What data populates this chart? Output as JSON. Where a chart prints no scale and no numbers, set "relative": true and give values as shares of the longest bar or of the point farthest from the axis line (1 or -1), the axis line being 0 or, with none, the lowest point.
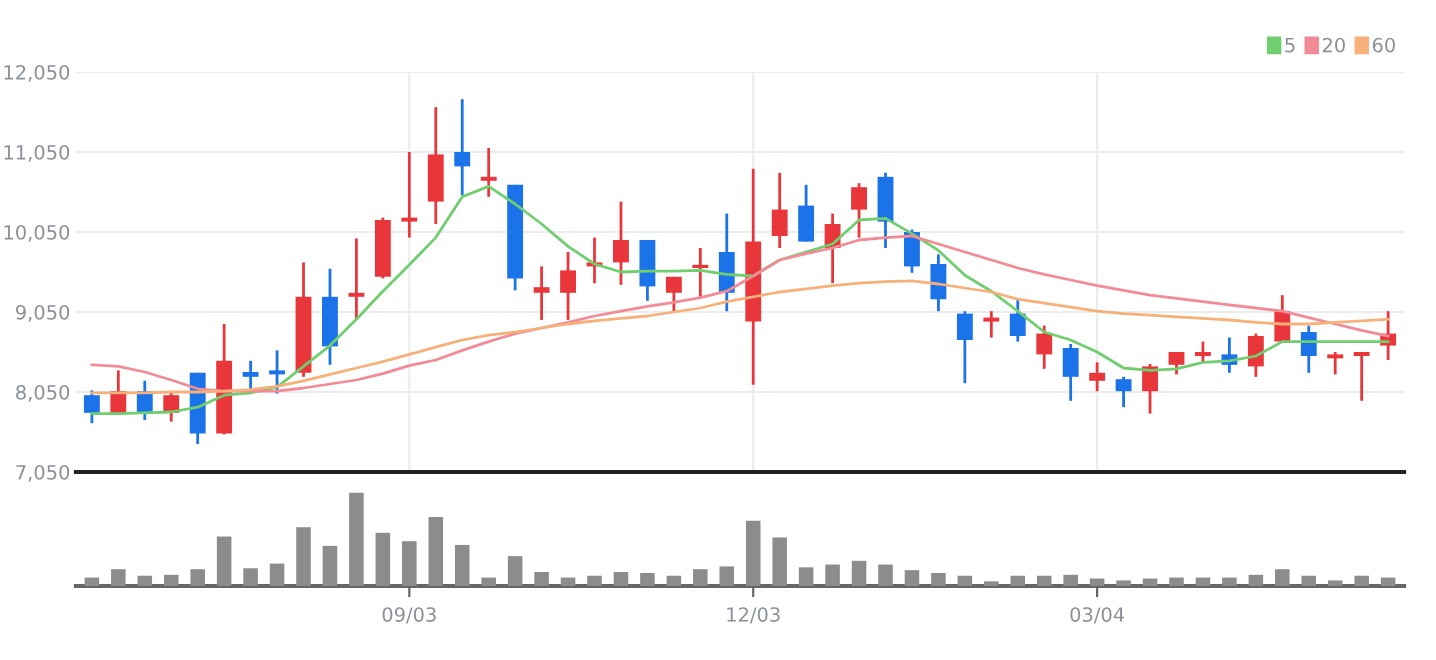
{
  "chart_data": [
    {
      "type": "candlestick",
      "tick_labels": "y",
      "grid": true,
      "legend": "top right",
      "categories": [
        null,
        null,
        null,
        null,
        null,
        null,
        null,
        null,
        null,
        null,
        null,
        null,
        null,
        null,
        null,
        null,
        null,
        null,
        null,
        null,
        null,
        null,
        null,
        null,
        null,
        null,
        null,
        null,
        null,
        null,
        null,
        null,
        null,
        null,
        null,
        null,
        null,
        null,
        null,
        null,
        null,
        null,
        null,
        null,
        null,
        null,
        null,
        null,
        null,
        null
      ],
      "ylim": [
        7050,
        12050
      ],
      "yticks": [
        {
          "value": 7050,
          "label": "7,050"
        },
        {
          "value": 8050,
          "label": "8,050"
        },
        {
          "value": 9050,
          "label": "9,050"
        },
        {
          "value": 10050,
          "label": "10,050"
        },
        {
          "value": 11050,
          "label": "11,050"
        },
        {
          "value": 12050,
          "label": "12,050"
        }
      ],
      "ohlc": [
        [
          8010,
          8070,
          7660,
          7790
        ],
        [
          7790,
          8320,
          7780,
          8060
        ],
        [
          8060,
          8190,
          7700,
          7790
        ],
        [
          7790,
          8040,
          7680,
          8010
        ],
        [
          8290,
          8290,
          7400,
          7530
        ],
        [
          7530,
          8900,
          7520,
          8440
        ],
        [
          8300,
          8440,
          8030,
          8240
        ],
        [
          8320,
          8570,
          8030,
          8270
        ],
        [
          8290,
          9670,
          8240,
          9240
        ],
        [
          9240,
          9590,
          8390,
          8620
        ],
        [
          9240,
          9970,
          8950,
          9290
        ],
        [
          9490,
          10230,
          9470,
          10200
        ],
        [
          10180,
          11050,
          9980,
          10230
        ],
        [
          10430,
          11610,
          10150,
          11020
        ],
        [
          11050,
          11710,
          10510,
          10870
        ],
        [
          10690,
          11100,
          10490,
          10740
        ],
        [
          10640,
          10640,
          9320,
          9470
        ],
        [
          9290,
          9620,
          8950,
          9360
        ],
        [
          9290,
          9800,
          8950,
          9570
        ],
        [
          9620,
          9980,
          9410,
          9670
        ],
        [
          9670,
          10430,
          9390,
          9950
        ],
        [
          9950,
          9950,
          9190,
          9370
        ],
        [
          9290,
          9490,
          9060,
          9490
        ],
        [
          9600,
          9850,
          9240,
          9640
        ],
        [
          9800,
          10280,
          9060,
          9290
        ],
        [
          8930,
          10840,
          8140,
          9930
        ],
        [
          10000,
          10790,
          9850,
          10330
        ],
        [
          10380,
          10640,
          9930,
          9930
        ],
        [
          9850,
          10280,
          9410,
          10150
        ],
        [
          10330,
          10660,
          9980,
          10610
        ],
        [
          10740,
          10790,
          9850,
          10180
        ],
        [
          10050,
          10080,
          9540,
          9620
        ],
        [
          9650,
          9770,
          9060,
          9210
        ],
        [
          9030,
          9060,
          8160,
          8700
        ],
        [
          8930,
          9060,
          8730,
          8980
        ],
        [
          9030,
          9210,
          8680,
          8750
        ],
        [
          8520,
          8880,
          8340,
          8780
        ],
        [
          8600,
          8650,
          7940,
          8240
        ],
        [
          8190,
          8420,
          8060,
          8290
        ],
        [
          8210,
          8240,
          7860,
          8060
        ],
        [
          8060,
          8400,
          7780,
          8370
        ],
        [
          8390,
          8550,
          8270,
          8550
        ],
        [
          8500,
          8680,
          8420,
          8550
        ],
        [
          8520,
          8730,
          8290,
          8390
        ],
        [
          8370,
          8780,
          8240,
          8750
        ],
        [
          8680,
          9260,
          8680,
          9060
        ],
        [
          8800,
          8880,
          8290,
          8500
        ],
        [
          8470,
          8550,
          8270,
          8520
        ],
        [
          8500,
          8550,
          7940,
          8550
        ],
        [
          8630,
          9060,
          8450,
          8780
        ]
      ],
      "colors": [
        "#1a73e8",
        "#e8363b",
        "#1a73e8",
        "#e8363b",
        "#1a73e8",
        "#e8363b",
        "#1a73e8",
        "#1a73e8",
        "#e8363b",
        "#1a73e8",
        "#e8363b",
        "#e8363b",
        "#e8363b",
        "#e8363b",
        "#1a73e8",
        "#e8363b",
        "#1a73e8",
        "#e8363b",
        "#e8363b",
        "#e8363b",
        "#e8363b",
        "#1a73e8",
        "#e8363b",
        "#e8363b",
        "#1a73e8",
        "#e8363b",
        "#e8363b",
        "#1a73e8",
        "#e8363b",
        "#e8363b",
        "#1a73e8",
        "#1a73e8",
        "#1a73e8",
        "#1a73e8",
        "#e8363b",
        "#1a73e8",
        "#e8363b",
        "#1a73e8",
        "#e8363b",
        "#1a73e8",
        "#e8363b",
        "#e8363b",
        "#e8363b",
        "#1a73e8",
        "#e8363b",
        "#e8363b",
        "#1a73e8",
        "#e8363b",
        "#e8363b",
        "#e8363b"
      ],
      "series": [
        {
          "name": "5",
          "type": "line",
          "color": "#6fcf6f",
          "values": [
            7780,
            7780,
            7790,
            7800,
            7860,
            8010,
            8040,
            8110,
            8370,
            8630,
            8960,
            9310,
            9640,
            9980,
            10490,
            10620,
            10400,
            10150,
            9870,
            9650,
            9550,
            9560,
            9560,
            9570,
            9520,
            9500,
            9700,
            9800,
            9900,
            10200,
            10220,
            10030,
            9820,
            9510,
            9310,
            9060,
            8800,
            8700,
            8550,
            8350,
            8320,
            8340,
            8420,
            8440,
            8500,
            8680,
            8680,
            8680,
            8680,
            8680
          ]
        },
        {
          "name": "20",
          "type": "line",
          "color": "#f28b95",
          "values": [
            8390,
            8370,
            8300,
            8200,
            8090,
            8060,
            8060,
            8060,
            8100,
            8150,
            8200,
            8280,
            8380,
            8450,
            8570,
            8680,
            8780,
            8850,
            8920,
            9000,
            9060,
            9120,
            9170,
            9230,
            9310,
            9500,
            9700,
            9780,
            9850,
            9950,
            9980,
            10000,
            9900,
            9800,
            9700,
            9600,
            9520,
            9450,
            9380,
            9320,
            9260,
            9220,
            9180,
            9140,
            9100,
            9060,
            8980,
            8900,
            8820,
            8750
          ]
        },
        {
          "name": "60",
          "type": "line",
          "color": "#f7b07a",
          "values": [
            8040,
            8040,
            8040,
            8050,
            8050,
            8060,
            8080,
            8120,
            8190,
            8270,
            8350,
            8430,
            8520,
            8610,
            8700,
            8760,
            8800,
            8850,
            8900,
            8940,
            8970,
            9000,
            9050,
            9100,
            9180,
            9240,
            9300,
            9340,
            9380,
            9410,
            9430,
            9440,
            9400,
            9350,
            9300,
            9210,
            9160,
            9110,
            9060,
            9030,
            9010,
            8990,
            8970,
            8950,
            8920,
            8900,
            8900,
            8920,
            8940,
            8960
          ]
        }
      ]
    },
    {
      "type": "bar",
      "relative": true,
      "tick_labels": "x",
      "color": "#8c8c8c",
      "categories": [
        null,
        null,
        null,
        null,
        null,
        null,
        null,
        null,
        null,
        null,
        null,
        null,
        "09/03",
        null,
        null,
        null,
        null,
        null,
        null,
        null,
        null,
        null,
        null,
        null,
        null,
        "12/03",
        null,
        null,
        null,
        null,
        null,
        null,
        null,
        null,
        null,
        null,
        null,
        null,
        "03/04",
        null,
        null,
        null,
        null,
        null,
        null,
        null,
        null,
        null,
        null,
        null
      ],
      "values": [
        0.09,
        0.18,
        0.11,
        0.12,
        0.18,
        0.53,
        0.19,
        0.24,
        0.63,
        0.43,
        1,
        0.57,
        0.48,
        0.74,
        0.44,
        0.09,
        0.32,
        0.15,
        0.09,
        0.11,
        0.15,
        0.14,
        0.11,
        0.18,
        0.21,
        0.7,
        0.52,
        0.2,
        0.23,
        0.27,
        0.23,
        0.17,
        0.14,
        0.11,
        0.05,
        0.11,
        0.11,
        0.12,
        0.08,
        0.06,
        0.08,
        0.09,
        0.09,
        0.09,
        0.12,
        0.18,
        0.11,
        0.06,
        0.11,
        0.09
      ]
    }
  ]
}
